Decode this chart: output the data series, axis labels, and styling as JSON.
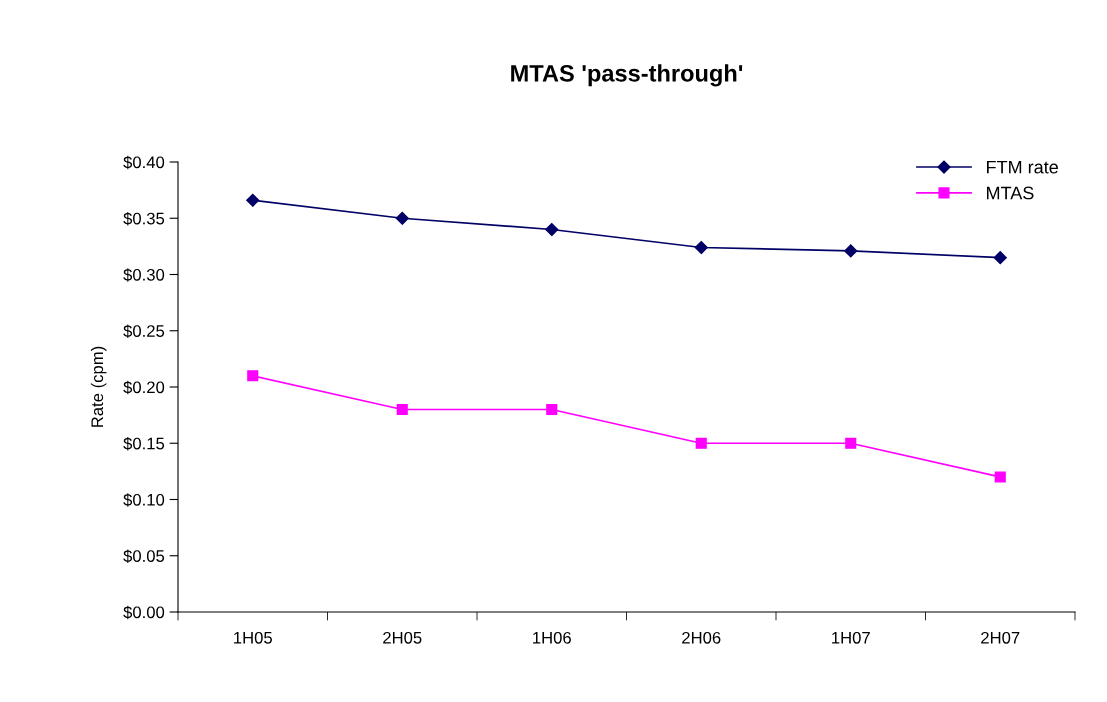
{
  "chart_data": {
    "type": "line",
    "title": "MTAS 'pass-through'",
    "ylabel": "Rate (cpm)",
    "categories": [
      "1H05",
      "2H05",
      "1H06",
      "2H06",
      "1H07",
      "2H07"
    ],
    "series": [
      {
        "name": "FTM rate",
        "color": "#000066",
        "marker": "diamond",
        "values": [
          0.366,
          0.35,
          0.34,
          0.324,
          0.321,
          0.315
        ]
      },
      {
        "name": "MTAS",
        "color": "#ff00ff",
        "marker": "square",
        "values": [
          0.21,
          0.18,
          0.18,
          0.15,
          0.15,
          0.12
        ]
      }
    ],
    "ylim": [
      0,
      0.4
    ],
    "yticks": [
      {
        "value": 0,
        "label": "$0.00"
      },
      {
        "value": 0.05,
        "label": "$0.05"
      },
      {
        "value": 0.1,
        "label": "$0.10"
      },
      {
        "value": 0.15,
        "label": "$0.15"
      },
      {
        "value": 0.2,
        "label": "$0.20"
      },
      {
        "value": 0.25,
        "label": "$0.25"
      },
      {
        "value": 0.3,
        "label": "$0.30"
      },
      {
        "value": 0.35,
        "label": "$0.35"
      },
      {
        "value": 0.4,
        "label": "$0.40"
      }
    ],
    "grid": false,
    "legend": "top right",
    "line_style": "solid"
  }
}
